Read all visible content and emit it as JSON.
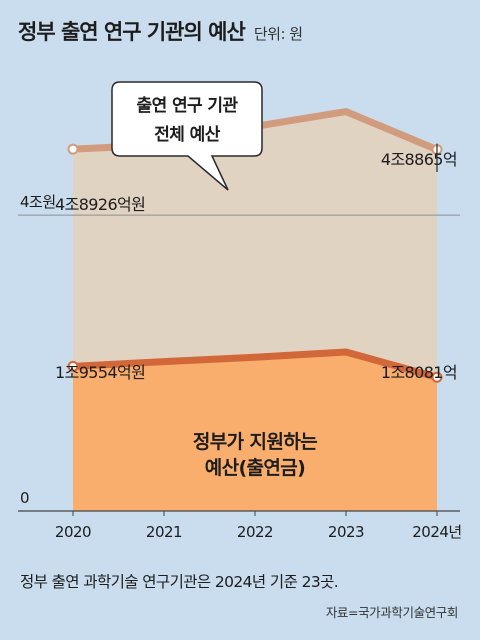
{
  "header": {
    "title": "정부 출연 연구 기관의 예산",
    "unit": "단위: 원"
  },
  "chart_data": {
    "type": "area",
    "x": [
      "2020",
      "2021",
      "2022",
      "2023",
      "2024년"
    ],
    "series": [
      {
        "values": [
          48926,
          49500,
          52000,
          54000,
          48865
        ],
        "color": "#d19b7e",
        "fill": "#e0d3c1"
      },
      {
        "values": [
          19554,
          20200,
          20800,
          21500,
          18081
        ],
        "color": "#d2673a",
        "fill": "#f9ae6d"
      }
    ],
    "ylim": [
      0,
      58000
    ],
    "y_ticks": [
      {
        "value": 0,
        "label": "0"
      },
      {
        "value": 40000,
        "label": "4조원"
      }
    ],
    "annotations": {
      "total_start": "4조8926억원",
      "total_end": "4조8865억",
      "gov_start": "1조9554억원",
      "gov_end": "1조8081억"
    },
    "callout": {
      "lines": [
        "출연 연구 기관",
        "전체 예산"
      ]
    },
    "inner_label": {
      "lines": [
        "정부가 지원하는",
        "예산(출연금)"
      ]
    }
  },
  "footnote": "정부 출연 과학기술 연구기관은 2024년 기준 23곳.",
  "source": "자료=국가과학기술연구회"
}
